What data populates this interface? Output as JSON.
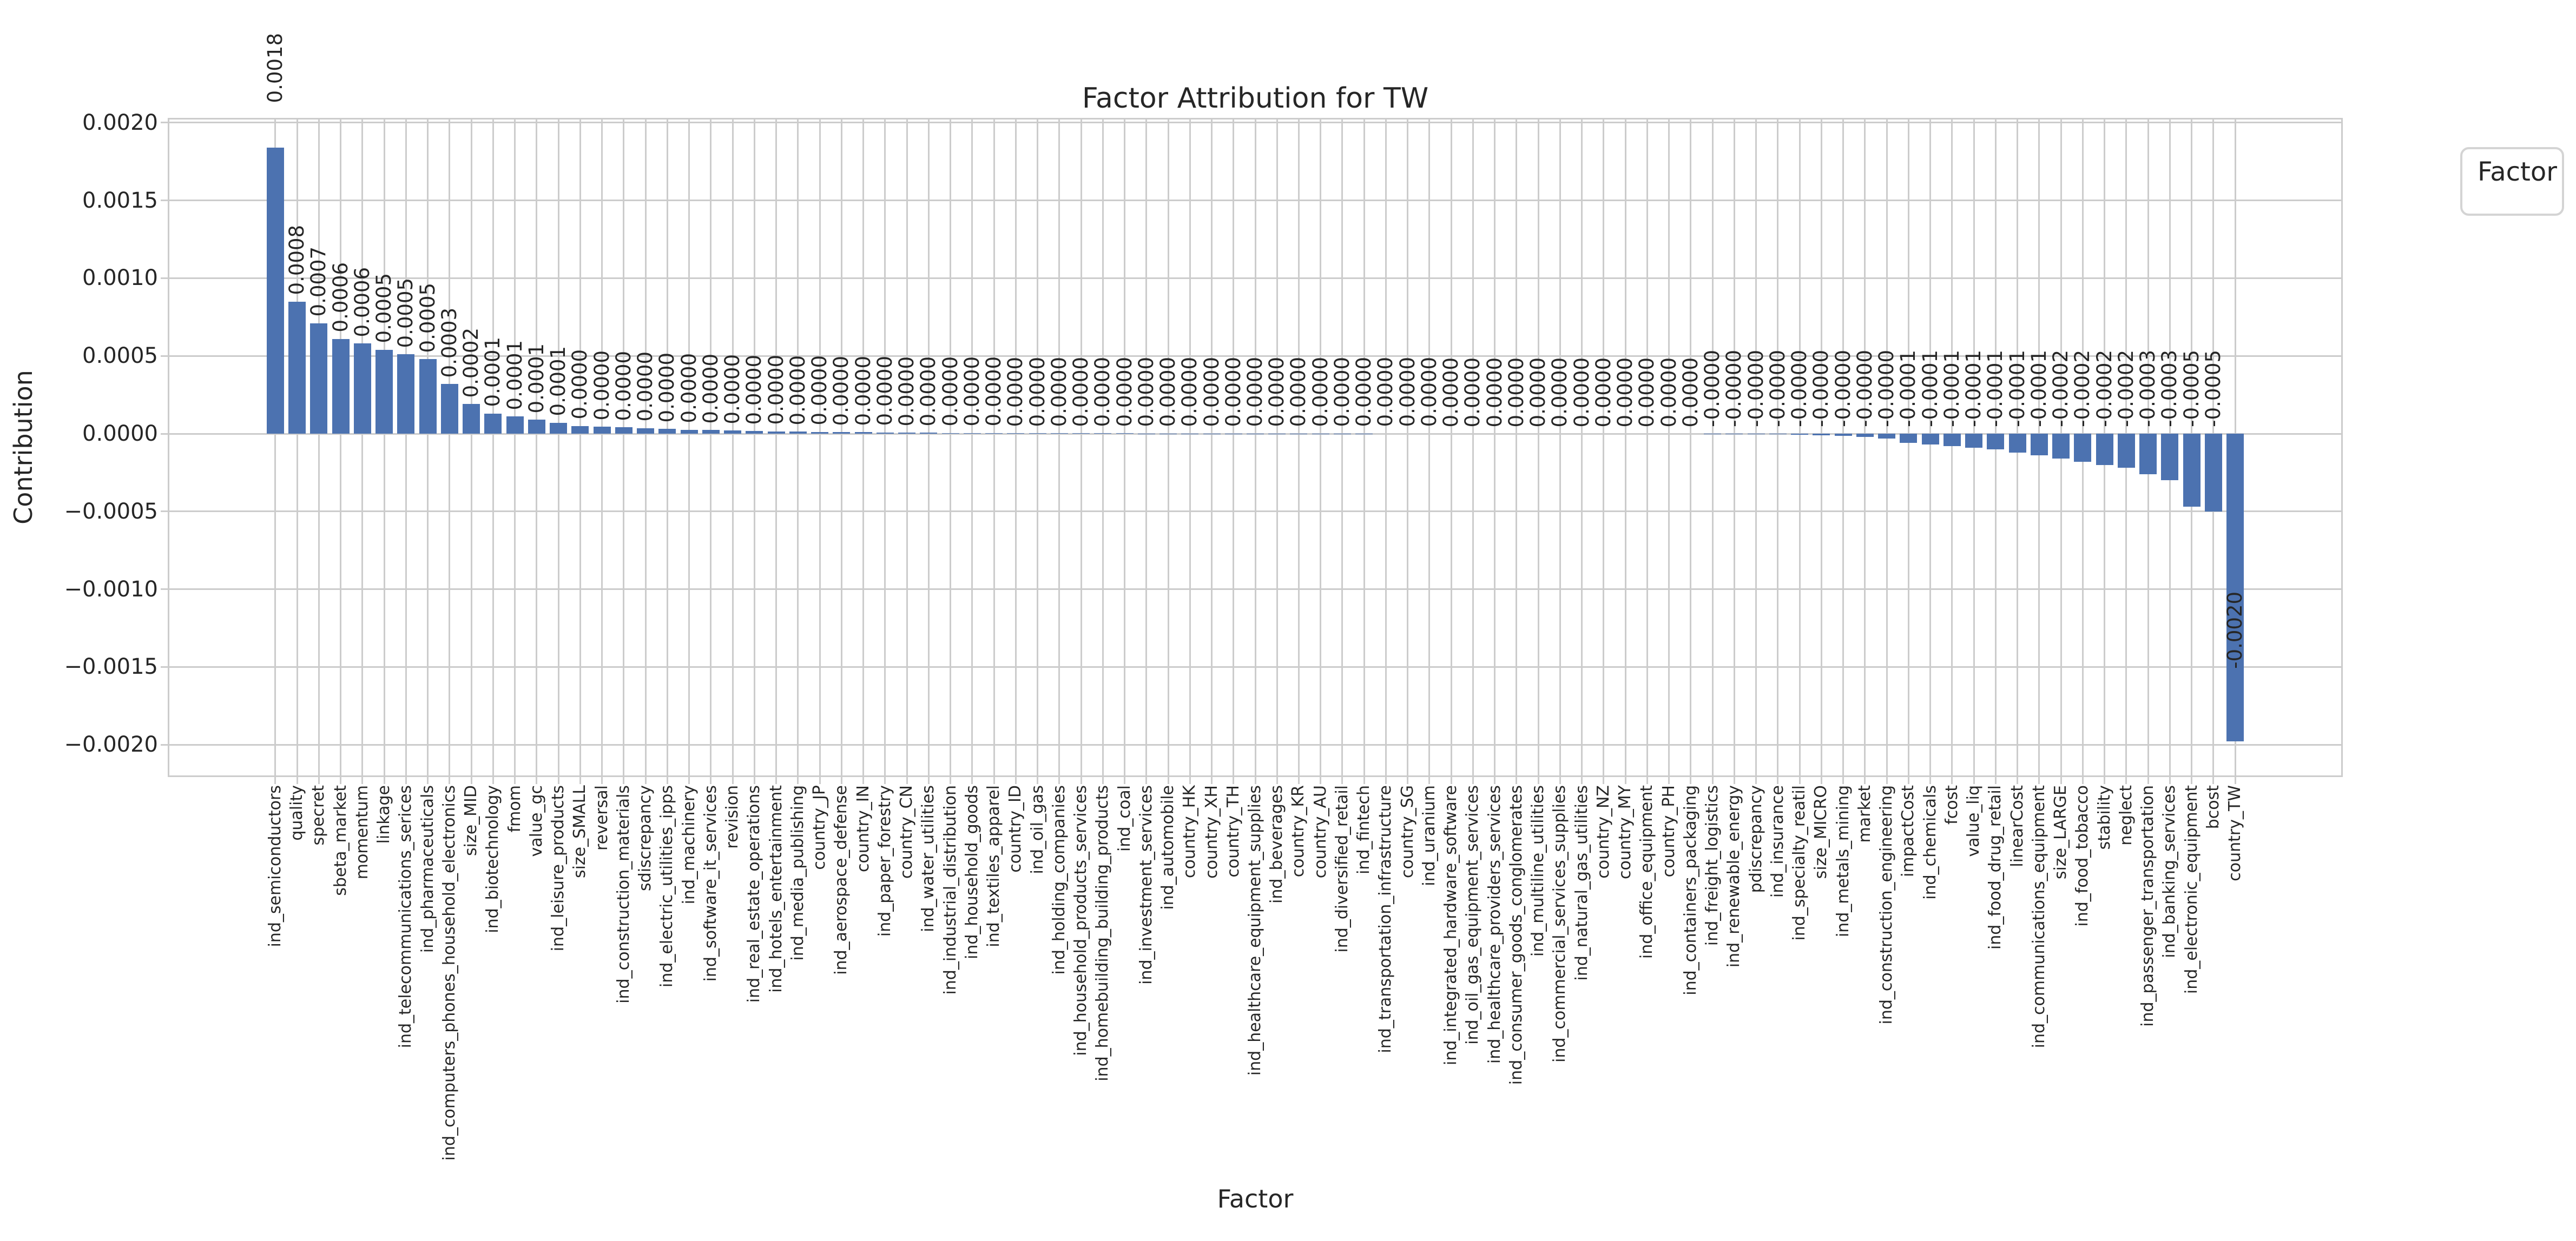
{
  "chart_data": {
    "type": "bar",
    "title": "Factor Attribution for TW",
    "xlabel": "Factor",
    "ylabel": "Contribution",
    "legend_title": "Factor",
    "bar_color": "#4c72b0",
    "grid_color": "#cccccc",
    "text_color": "#262626",
    "grid": true,
    "legend_position": "outside-top-right",
    "ylim": [
      -0.00221,
      0.00203
    ],
    "ytick_labels": [
      "0.0020",
      "0.0015",
      "0.0010",
      "0.0005",
      "0.0000",
      "−0.0005",
      "−0.0010",
      "−0.0015",
      "−0.0020"
    ],
    "yticks": [
      0.002,
      0.0015,
      0.001,
      0.0005,
      0.0,
      -0.0005,
      -0.001,
      -0.0015,
      -0.002
    ],
    "categories": [
      "ind_semiconductors",
      "quality",
      "specret",
      "sbeta_market",
      "momentum",
      "linkage",
      "ind_telecommunications_serices",
      "ind_pharmaceuticals",
      "ind_computers_phones_household_electronics",
      "size_MID",
      "ind_biotechnology",
      "fmom",
      "value_gc",
      "ind_leisure_products",
      "size_SMALL",
      "reversal",
      "ind_construction_materials",
      "sdiscrepancy",
      "ind_electric_utilities_ipps",
      "ind_machinery",
      "ind_software_it_services",
      "revision",
      "ind_real_estate_operations",
      "ind_hotels_entertainment",
      "ind_media_publishing",
      "country_JP",
      "ind_aerospace_defense",
      "country_IN",
      "ind_paper_forestry",
      "country_CN",
      "ind_water_utilities",
      "ind_industrial_distribution",
      "ind_household_goods",
      "ind_textiles_apparel",
      "country_ID",
      "ind_oil_gas",
      "ind_holding_companies",
      "ind_household_products_services",
      "ind_homebuilding_building_products",
      "ind_coal",
      "ind_investment_services",
      "ind_automobile",
      "country_HK",
      "country_XH",
      "country_TH",
      "ind_healthcare_equipment_supplies",
      "ind_beverages",
      "country_KR",
      "country_AU",
      "ind_diversified_retail",
      "ind_fintech",
      "ind_transportation_infrastructure",
      "country_SG",
      "ind_uranium",
      "ind_integrated_hardware_software",
      "ind_oil_gas_equipment_services",
      "ind_healthcare_providers_services",
      "ind_consumer_goods_conglomerates",
      "ind_multiline_utilities",
      "ind_commercial_services_supplies",
      "ind_natural_gas_utilities",
      "country_NZ",
      "country_MY",
      "ind_office_equipment",
      "country_PH",
      "ind_containers_packaging",
      "ind_freight_logistics",
      "ind_renewable_energy",
      "pdiscrepancy",
      "ind_insurance",
      "ind_specialty_reatil",
      "size_MICRO",
      "ind_metals_mining",
      "market",
      "ind_construction_engineering",
      "impactCost",
      "ind_chemicals",
      "fcost",
      "value_liq",
      "ind_food_drug_retail",
      "linearCost",
      "ind_communications_equipment",
      "size_LARGE",
      "ind_food_tobacco",
      "stability",
      "neglect",
      "ind_passenger_transportation",
      "ind_banking_services",
      "ind_electronic_equipment",
      "bcost",
      "country_TW"
    ],
    "values": [
      0.00184,
      0.00085,
      0.00071,
      0.00061,
      0.00058,
      0.00054,
      0.00051,
      0.00048,
      0.00032,
      0.00019,
      0.00013,
      0.00011,
      9e-05,
      7e-05,
      5e-05,
      4.5e-05,
      4e-05,
      3.5e-05,
      3e-05,
      2.6e-05,
      2.3e-05,
      2e-05,
      1.7e-05,
      1.5e-05,
      1.3e-05,
      1.1e-05,
      1e-05,
      9e-06,
      8e-06,
      7e-06,
      6e-06,
      5e-06,
      4.5e-06,
      4e-06,
      3.5e-06,
      3e-06,
      2.7e-06,
      2.4e-06,
      2.1e-06,
      1.8e-06,
      1.5e-06,
      1.3e-06,
      1.1e-06,
      9e-07,
      8e-07,
      7e-07,
      6e-07,
      5e-07,
      4e-07,
      3.5e-07,
      3e-07,
      2.5e-07,
      2e-07,
      1.8e-07,
      1.5e-07,
      1.2e-07,
      1e-07,
      8e-08,
      6e-08,
      5e-08,
      4e-08,
      3e-08,
      2e-08,
      1e-08,
      5e-09,
      2e-09,
      -5e-07,
      -1e-06,
      -2e-06,
      -4e-06,
      -7e-06,
      -1e-05,
      -1.5e-05,
      -2e-05,
      -3e-05,
      -6e-05,
      -7e-05,
      -8e-05,
      -9e-05,
      -0.0001,
      -0.00012,
      -0.00014,
      -0.00016,
      -0.00018,
      -0.0002,
      -0.00022,
      -0.00026,
      -0.0003,
      -0.00047,
      -0.0005,
      -0.00198
    ],
    "value_labels": [
      "0.0018",
      "0.0008",
      "0.0007",
      "0.0006",
      "0.0006",
      "0.0005",
      "0.0005",
      "0.0005",
      "0.0003",
      "0.0002",
      "0.0001",
      "0.0001",
      "0.0001",
      "0.0001",
      "0.0000",
      "0.0000",
      "0.0000",
      "0.0000",
      "0.0000",
      "0.0000",
      "0.0000",
      "0.0000",
      "0.0000",
      "0.0000",
      "0.0000",
      "0.0000",
      "0.0000",
      "0.0000",
      "0.0000",
      "0.0000",
      "0.0000",
      "0.0000",
      "0.0000",
      "0.0000",
      "0.0000",
      "0.0000",
      "0.0000",
      "0.0000",
      "0.0000",
      "0.0000",
      "0.0000",
      "0.0000",
      "0.0000",
      "0.0000",
      "0.0000",
      "0.0000",
      "0.0000",
      "0.0000",
      "0.0000",
      "0.0000",
      "0.0000",
      "0.0000",
      "0.0000",
      "0.0000",
      "0.0000",
      "0.0000",
      "0.0000",
      "0.0000",
      "0.0000",
      "0.0000",
      "0.0000",
      "0.0000",
      "0.0000",
      "0.0000",
      "0.0000",
      "0.0000",
      "-0.0000",
      "-0.0000",
      "-0.0000",
      "-0.0000",
      "-0.0000",
      "-0.0000",
      "-0.0000",
      "-0.0000",
      "-0.0000",
      "-0.0001",
      "-0.0001",
      "-0.0001",
      "-0.0001",
      "-0.0001",
      "-0.0001",
      "-0.0001",
      "-0.0002",
      "-0.0002",
      "-0.0002",
      "-0.0002",
      "-0.0003",
      "-0.0003",
      "-0.0005",
      "-0.0005",
      "-0.0020"
    ]
  }
}
